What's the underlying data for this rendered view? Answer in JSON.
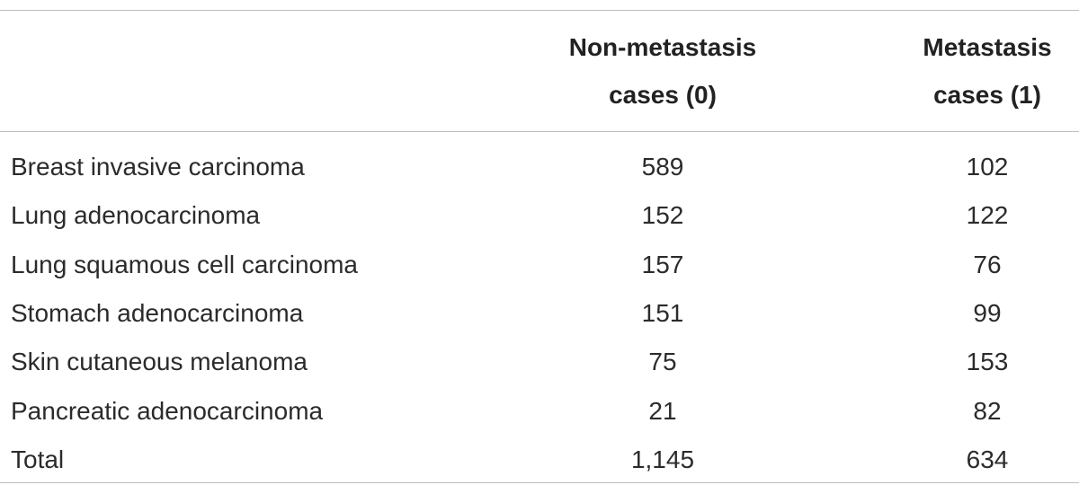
{
  "table": {
    "header": [
      null,
      "Non-metastasis cases (0)",
      "Metastasis cases (1)"
    ],
    "rows": [
      [
        "Breast invasive carcinoma",
        589,
        102
      ],
      [
        "Lung adenocarcinoma",
        152,
        122
      ],
      [
        "Lung squamous cell carcinoma",
        157,
        76
      ],
      [
        "Stomach adenocarcinoma",
        151,
        99
      ],
      [
        "Skin cutaneous melanoma",
        75,
        153
      ],
      [
        "Pancreatic adenocarcinoma",
        21,
        82
      ],
      [
        "Total",
        "1,145",
        634
      ]
    ]
  }
}
